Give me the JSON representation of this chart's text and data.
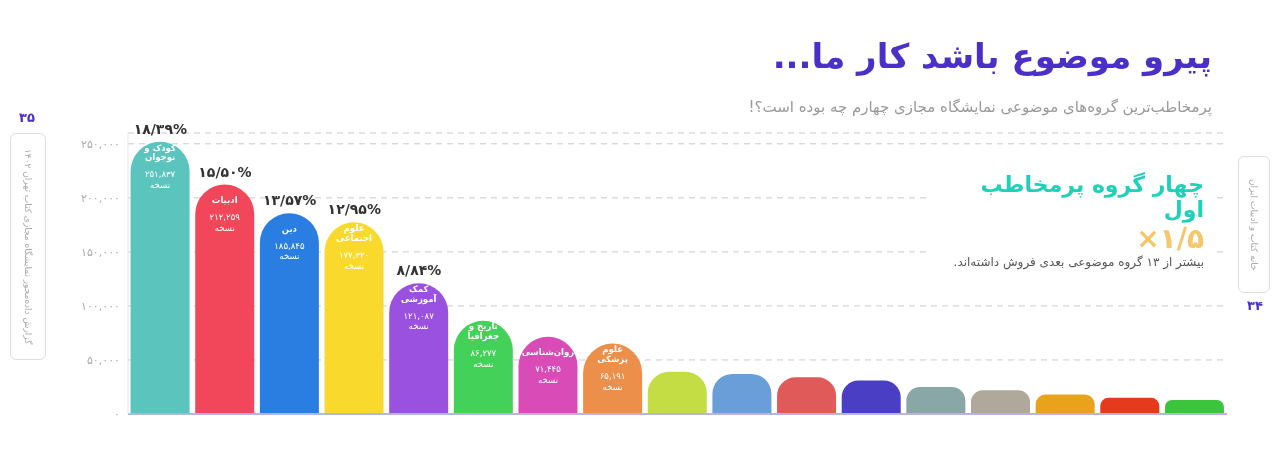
{
  "chart_data": {
    "type": "bar",
    "title": "پیرو موضوع باشد کار ما...",
    "subtitle": "پرمخاطب‌ترین گروه‌های موضوعی نمایشگاه مجازی چهارم چه بوده است؟!",
    "categories": [
      "کودک و نوجوان",
      "ادبیات",
      "دین",
      "علوم اجتماعی",
      "کمک آموزشی",
      "تاریخ و جغرافیا",
      "روان‌شناسی",
      "علوم پزشکی",
      null,
      null,
      null,
      null,
      null,
      null,
      null,
      null,
      null
    ],
    "values": [
      251837,
      212259,
      185845,
      177320,
      121087,
      86277,
      71445,
      65191,
      39000,
      37000,
      34000,
      31000,
      25000,
      22000,
      18000,
      15000,
      13000
    ],
    "value_labels": [
      "۲۵۱,۸۳۷ نسخه",
      "۲۱۲,۲۵۹ نسخه",
      "۱۸۵,۸۴۵ نسخه",
      "۱۷۷,۳۲۰ نسخه",
      "۱۲۱,۰۸۷ نسخه",
      "۸۶,۲۷۷ نسخه",
      "۷۱,۴۴۵ نسخه",
      "۶۵,۱۹۱ نسخه",
      null,
      null,
      null,
      null,
      null,
      null,
      null,
      null,
      null
    ],
    "colors": [
      "#5bc4bd",
      "#f2465a",
      "#2a7de1",
      "#f9d92b",
      "#9b51e0",
      "#44d15a",
      "#d94bb7",
      "#eb8f4a",
      "#c5dd45",
      "#6a9ed8",
      "#e05a5a",
      "#4a3fc4",
      "#8aa7a8",
      "#b0a89a",
      "#e8a21c",
      "#e53a1c",
      "#3cc43c"
    ],
    "ylim": [
      0,
      260000
    ],
    "yticks": [
      {
        "value": 0,
        "label": "۰"
      },
      {
        "value": 50000,
        "label": "۵۰,۰۰۰"
      },
      {
        "value": 100000,
        "label": "۱۰۰,۰۰۰"
      },
      {
        "value": 150000,
        "label": "۱۵۰,۰۰۰"
      },
      {
        "value": 200000,
        "label": "۲۰۰,۰۰۰"
      },
      {
        "value": 250000,
        "label": "۲۵۰,۰۰۰"
      }
    ],
    "grid": "y",
    "tick_labels": "y",
    "annotations": [
      {
        "text": "۱۸/۳۹%",
        "x": "کودک و نوجوان",
        "y": 251837
      },
      {
        "text": "۱۵/۵۰%",
        "x": "ادبیات",
        "y": 212259
      },
      {
        "text": "۱۳/۵۷%",
        "x": "دین",
        "y": 185845
      },
      {
        "text": "۱۲/۹۵%",
        "x": "علوم اجتماعی",
        "y": 177320
      },
      {
        "text": "۸/۸۴%",
        "x": "کمک آموزشی",
        "y": 121087
      },
      "چهار گروه پرمخاطب اول",
      "۱/۵×",
      "بیشتر از ۱۳ گروه موضوعی بعدی فروش داشته‌اند.",
      "۳۵",
      "گزارش داده‌محور نمایشگاه مجازی کتاب تهران ۱۴۰۲",
      "۳۴",
      "خانه کتاب و ادبیات ایران"
    ]
  }
}
